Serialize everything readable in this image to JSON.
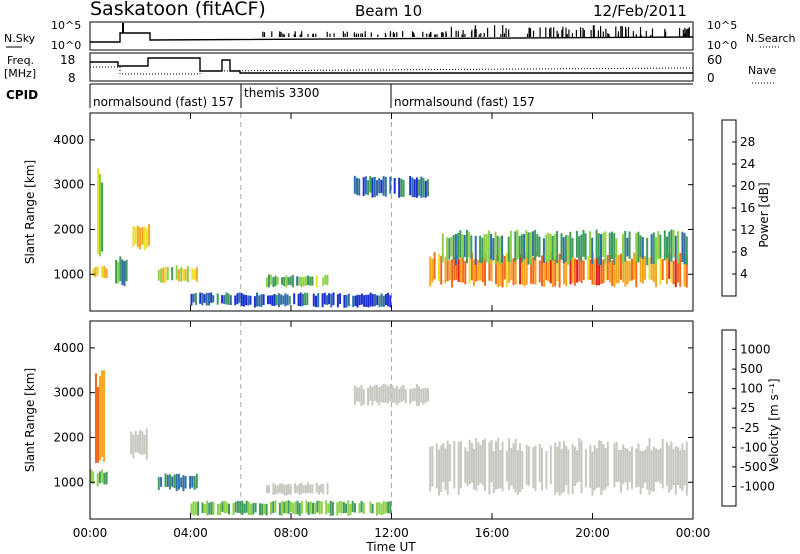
{
  "header": {
    "station": "Saskatoon (fitACF)",
    "beam": "Beam 10",
    "date": "12/Feb/2011"
  },
  "noise_panel": {
    "left_label": "N.Sky",
    "left_top_tick": "10^5",
    "left_bottom_tick": "10^0",
    "right_top_tick": "10^5",
    "right_bottom_tick": "10^0",
    "right_label": "N.Search"
  },
  "freq_panel": {
    "left_label_line1": "Freq.",
    "left_label_line2": "[MHz]",
    "left_ticks": [
      "18",
      "8"
    ],
    "right_ticks": [
      "60",
      "0"
    ],
    "right_label": "Nave"
  },
  "cpid": {
    "label": "CPID",
    "segments": [
      {
        "start_hour": 0.0,
        "end_hour": 6.0,
        "text": "normalsound (fast) 157"
      },
      {
        "start_hour": 6.0,
        "end_hour": 12.0,
        "text": "themis 3300"
      },
      {
        "start_hour": 12.0,
        "end_hour": 24.0,
        "text": "normalsound (fast) 157"
      }
    ]
  },
  "chart_data": [
    {
      "type": "heatmap",
      "panel": "power",
      "xlabel": "Time UT",
      "ylabel": "Slant Range [km]",
      "xlim": [
        0,
        24
      ],
      "ylim": [
        180,
        4600
      ],
      "x_ticks": [
        "00:00",
        "04:00",
        "08:00",
        "12:00",
        "16:00",
        "20:00",
        "00:00"
      ],
      "y_ticks": [
        1000,
        2000,
        3000,
        4000
      ],
      "colorbar": {
        "label": "Power [dB]",
        "ticks": [
          "28",
          "24",
          "20",
          "16",
          "12",
          "8",
          "4"
        ],
        "colors": [
          "#e0201c",
          "#f26b1d",
          "#f5a623",
          "#e8e02a",
          "#8fd148",
          "#3f9a5d",
          "#2e6fa8",
          "#1a2fd0"
        ]
      },
      "regions": [
        {
          "t0": 0.0,
          "t1": 0.8,
          "r0": 900,
          "r1": 1200,
          "value": 24
        },
        {
          "t0": 0.2,
          "t1": 0.6,
          "r0": 1400,
          "r1": 3500,
          "value": 16
        },
        {
          "t0": 1.0,
          "t1": 1.5,
          "r0": 700,
          "r1": 1400,
          "value": 10
        },
        {
          "t0": 1.6,
          "t1": 2.4,
          "r0": 1500,
          "r1": 2200,
          "value": 22
        },
        {
          "t0": 2.7,
          "t1": 4.3,
          "r0": 800,
          "r1": 1200,
          "value": 18
        },
        {
          "t0": 4.0,
          "t1": 6.0,
          "r0": 300,
          "r1": 600,
          "value": 8
        },
        {
          "t0": 7.0,
          "t1": 9.5,
          "r0": 700,
          "r1": 1000,
          "value": 14
        },
        {
          "t0": 6.0,
          "t1": 12.0,
          "r0": 250,
          "r1": 600,
          "value": 6
        },
        {
          "t0": 10.5,
          "t1": 13.5,
          "r0": 2700,
          "r1": 3200,
          "value": 8
        },
        {
          "t0": 13.5,
          "t1": 23.8,
          "r0": 700,
          "r1": 1500,
          "value": 26
        },
        {
          "t0": 14.0,
          "t1": 23.8,
          "r0": 1200,
          "r1": 2000,
          "value": 12
        }
      ]
    },
    {
      "type": "heatmap",
      "panel": "velocity",
      "xlabel": "Time UT",
      "ylabel": "Slant Range [km]",
      "xlim": [
        0,
        24
      ],
      "ylim": [
        180,
        4600
      ],
      "x_ticks": [
        "00:00",
        "04:00",
        "08:00",
        "12:00",
        "16:00",
        "20:00",
        "00:00"
      ],
      "y_ticks": [
        1000,
        2000,
        3000,
        4000
      ],
      "colorbar": {
        "label": "Velocity [m s⁻¹]",
        "ticks": [
          "1000",
          "500",
          "100",
          "25",
          "-25",
          "-100",
          "-500",
          "-1000"
        ],
        "colors": [
          "#1a2fd0",
          "#2e6fa8",
          "#3f9a5d",
          "#8fd148",
          "#c8c8c0",
          "#e8e02a",
          "#f5a623",
          "#f26b1d",
          "#e0201c"
        ]
      },
      "regions": [
        {
          "t0": 0.0,
          "t1": 0.8,
          "r0": 900,
          "r1": 1300,
          "value": 100
        },
        {
          "t0": 0.2,
          "t1": 0.6,
          "r0": 1400,
          "r1": 3500,
          "value": -500
        },
        {
          "t0": 1.6,
          "t1": 2.4,
          "r0": 1500,
          "r1": 2200,
          "value": 0
        },
        {
          "t0": 2.7,
          "t1": 4.3,
          "r0": 800,
          "r1": 1200,
          "value": 500
        },
        {
          "t0": 7.0,
          "t1": 9.5,
          "r0": 700,
          "r1": 1000,
          "value": 0
        },
        {
          "t0": 4.0,
          "t1": 12.0,
          "r0": 250,
          "r1": 600,
          "value": 100
        },
        {
          "t0": 10.5,
          "t1": 13.5,
          "r0": 2700,
          "r1": 3200,
          "value": 0
        },
        {
          "t0": 13.5,
          "t1": 23.8,
          "r0": 700,
          "r1": 2000,
          "value": 0
        }
      ]
    }
  ]
}
